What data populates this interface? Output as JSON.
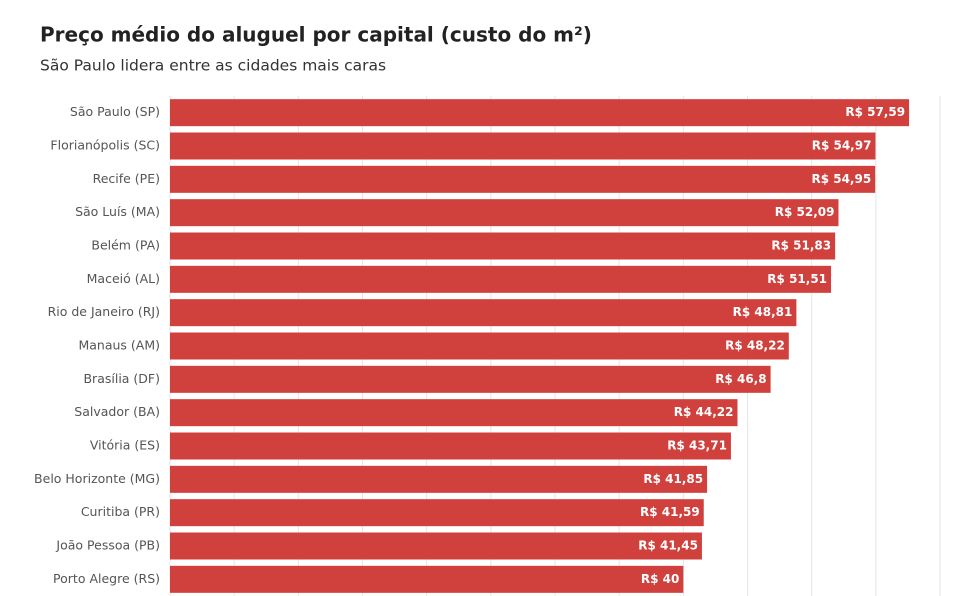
{
  "chart_data": {
    "type": "barh",
    "title": "Preço médio do aluguel por capital (custo do m²)",
    "subtitle": "São Paulo lidera entre as cidades mais caras",
    "categories": [
      "São Paulo (SP)",
      "Florianópolis (SC)",
      "Recife (PE)",
      "São Luís (MA)",
      "Belém (PA)",
      "Maceió (AL)",
      "Rio de Janeiro (RJ)",
      "Manaus (AM)",
      "Brasília (DF)",
      "Salvador (BA)",
      "Vitória (ES)",
      "Belo Horizonte (MG)",
      "Curitiba (PR)",
      "João Pessoa (PB)",
      "Porto Alegre (RS)"
    ],
    "values": [
      57.59,
      54.97,
      54.95,
      52.09,
      51.83,
      51.51,
      48.81,
      48.22,
      46.8,
      44.22,
      43.71,
      41.85,
      41.59,
      41.45,
      40
    ],
    "value_labels": [
      "R$ 57,59",
      "R$ 54,97",
      "R$ 54,95",
      "R$ 52,09",
      "R$ 51,83",
      "R$ 51,51",
      "R$ 48,81",
      "R$ 48,22",
      "R$ 46,8",
      "R$ 44,22",
      "R$ 43,71",
      "R$ 41,85",
      "R$ 41,59",
      "R$ 41,45",
      "R$ 40"
    ],
    "color": "#d0413d",
    "xlim": [
      0,
      60
    ],
    "xticks": [
      0,
      5,
      10,
      15,
      20,
      25,
      30,
      35,
      40,
      45,
      50,
      55,
      60
    ],
    "grid": true
  }
}
